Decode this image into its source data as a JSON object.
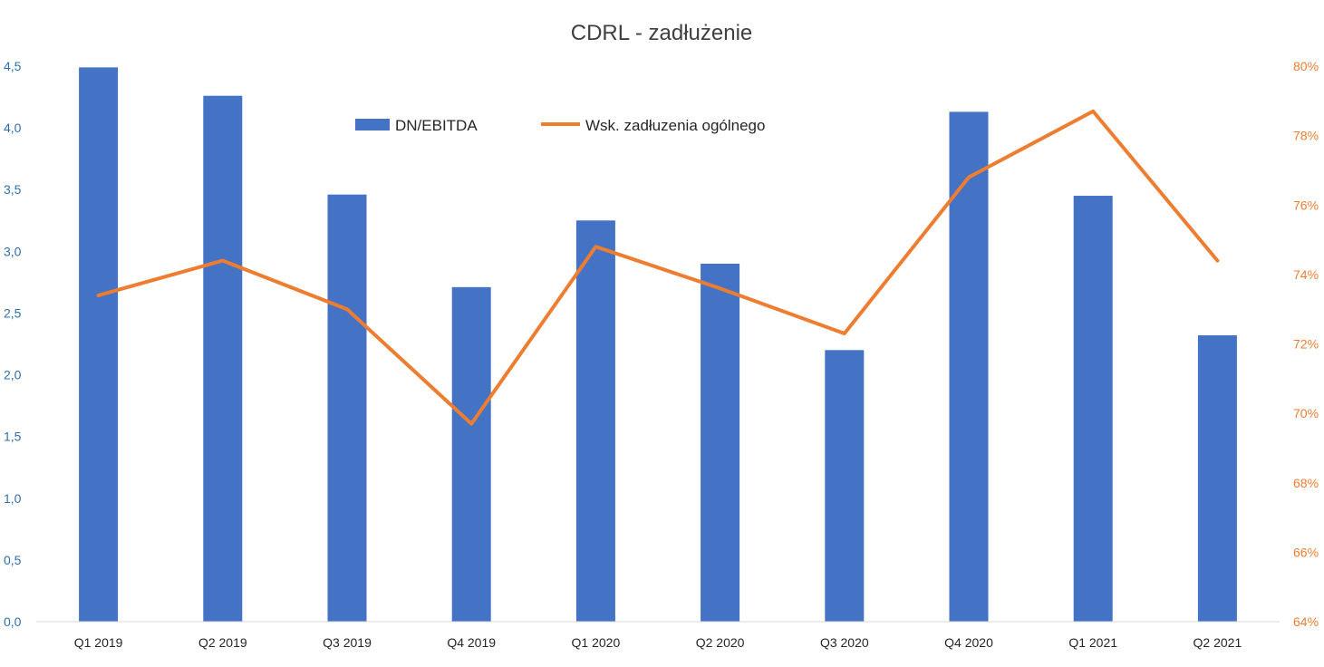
{
  "chart_data": {
    "type": "bar",
    "title": "CDRL - zadłużenie",
    "categories": [
      "Q1 2019",
      "Q2 2019",
      "Q3 2019",
      "Q4 2019",
      "Q1 2020",
      "Q2 2020",
      "Q3 2020",
      "Q4 2020",
      "Q1 2021",
      "Q2 2021"
    ],
    "series": [
      {
        "name": "DN/EBITDA",
        "type": "bar",
        "axis": "left",
        "color": "#4472c4",
        "values": [
          4.49,
          4.26,
          3.46,
          2.71,
          3.25,
          2.9,
          2.2,
          4.13,
          3.45,
          2.32
        ]
      },
      {
        "name": "Wsk. zadłuzenia ogólnego",
        "type": "line",
        "axis": "right",
        "color": "#ed7d31",
        "values": [
          0.734,
          0.744,
          0.73,
          0.697,
          0.748,
          0.736,
          0.723,
          0.768,
          0.787,
          0.744
        ]
      }
    ],
    "y_left": {
      "ylim": [
        0,
        4.5
      ],
      "ticks": [
        "0,0",
        "0,5",
        "1,0",
        "1,5",
        "2,0",
        "2,5",
        "3,0",
        "3,5",
        "4,0",
        "4,5"
      ],
      "color": "#2f6fad"
    },
    "y_right": {
      "ylim": [
        0.64,
        0.8
      ],
      "ticks": [
        "64%",
        "66%",
        "68%",
        "70%",
        "72%",
        "74%",
        "76%",
        "78%",
        "80%"
      ],
      "color": "#ed7d31"
    },
    "grid": false,
    "legend": "top-center"
  }
}
